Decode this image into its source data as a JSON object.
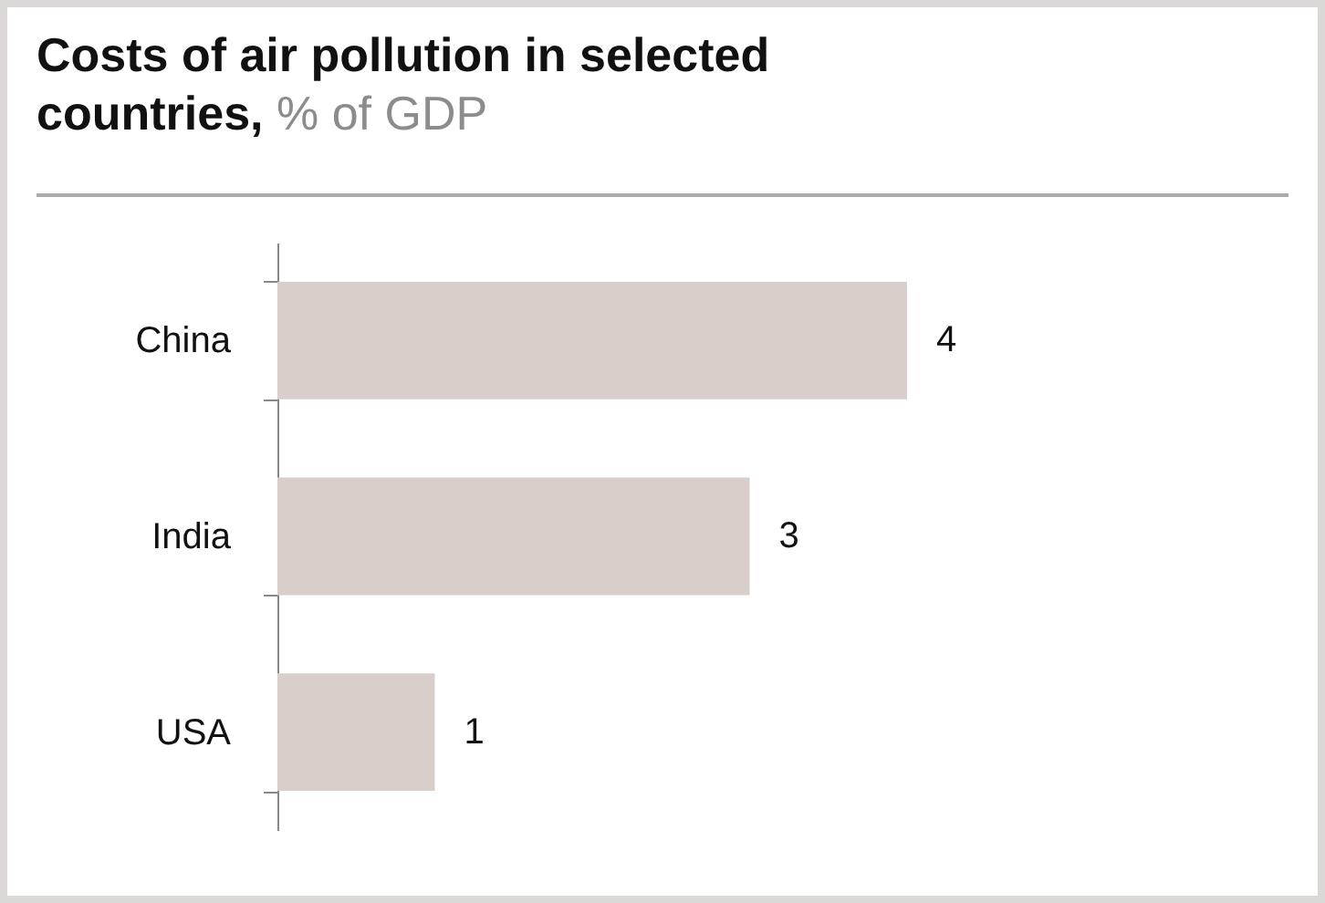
{
  "chart_data": {
    "type": "bar",
    "orientation": "horizontal",
    "title": "Costs of air pollution in selected countries,",
    "subtitle": "% of GDP",
    "categories": [
      "China",
      "India",
      "USA"
    ],
    "values": [
      4,
      3,
      1
    ],
    "color": "#d8cfcb",
    "data_labels": true
  }
}
